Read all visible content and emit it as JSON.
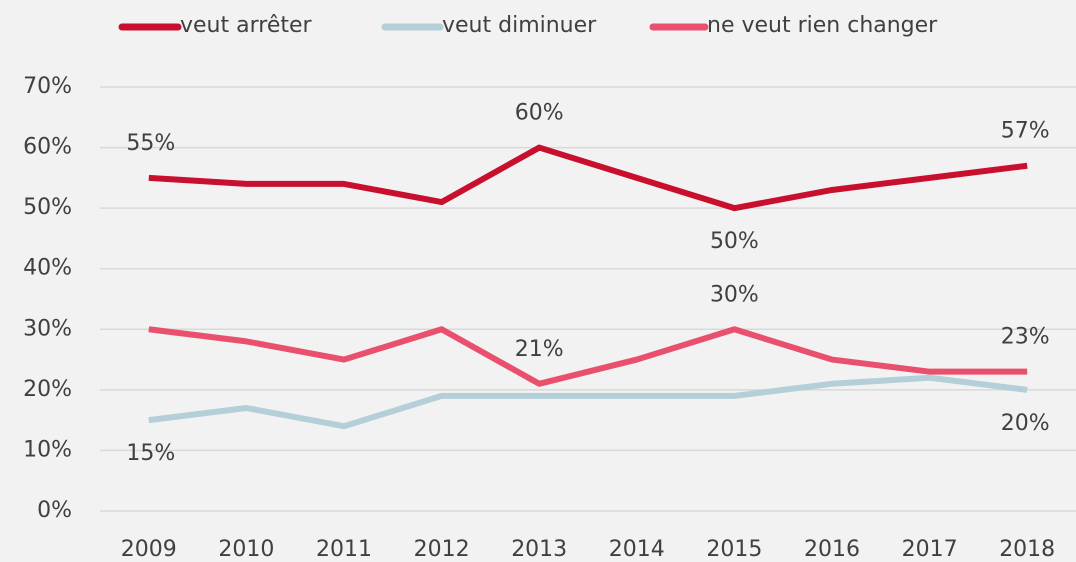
{
  "chart_data": {
    "type": "line",
    "categories": [
      "2009",
      "2010",
      "2011",
      "2012",
      "2013",
      "2014",
      "2015",
      "2016",
      "2017",
      "2018"
    ],
    "series": [
      {
        "name": "veut arrêter",
        "color": "#c8102e",
        "values": [
          55,
          54,
          54,
          51,
          60,
          55,
          50,
          53,
          55,
          57
        ],
        "value_labels": [
          "55%",
          null,
          null,
          null,
          "60%",
          null,
          "50%",
          null,
          null,
          "57%"
        ]
      },
      {
        "name": "veut diminuer",
        "color": "#b4cfd8",
        "values": [
          15,
          17,
          14,
          19,
          19,
          19,
          19,
          21,
          22,
          20
        ],
        "value_labels": [
          "15%",
          null,
          null,
          null,
          null,
          null,
          null,
          null,
          null,
          "20%"
        ]
      },
      {
        "name": "ne veut rien changer",
        "color": "#e8506e",
        "values": [
          30,
          28,
          25,
          30,
          21,
          25,
          30,
          25,
          23,
          23
        ],
        "value_labels": [
          null,
          null,
          null,
          null,
          "21%",
          null,
          "30%",
          null,
          null,
          "23%"
        ]
      }
    ],
    "ylim": [
      0,
      70
    ],
    "yticks": [
      {
        "value": 0,
        "label": "0%"
      },
      {
        "value": 10,
        "label": "10%"
      },
      {
        "value": 20,
        "label": "20%"
      },
      {
        "value": 30,
        "label": "30%"
      },
      {
        "value": 40,
        "label": "40%"
      },
      {
        "value": 50,
        "label": "50%"
      },
      {
        "value": 60,
        "label": "60%"
      },
      {
        "value": 70,
        "label": "70%"
      }
    ],
    "grid": true,
    "legend": "top"
  }
}
